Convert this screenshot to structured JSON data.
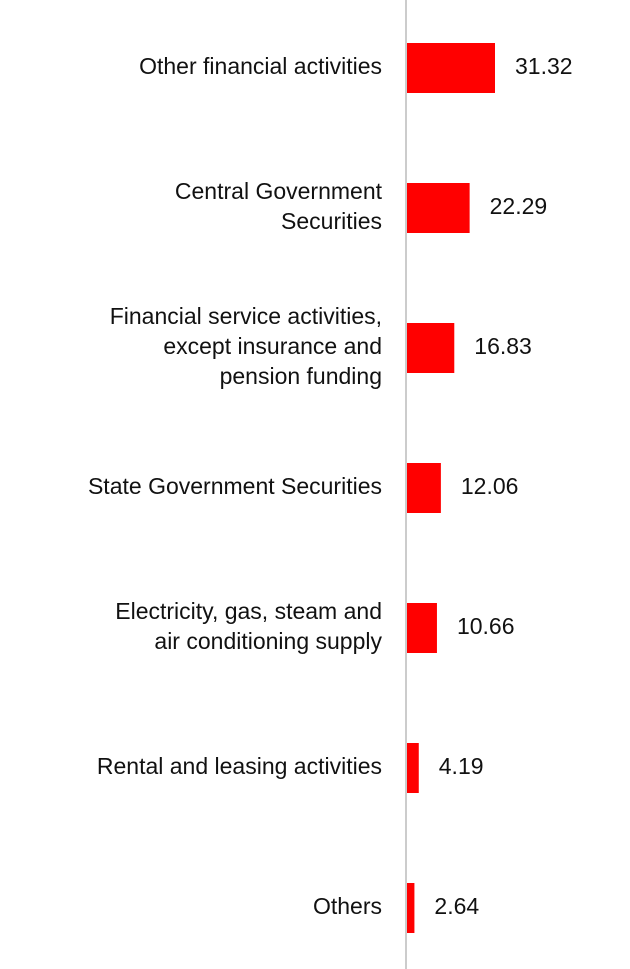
{
  "chart_data": {
    "type": "bar",
    "orientation": "horizontal",
    "categories": [
      "Other financial activities",
      "Central Government Securities",
      "Financial service activities, except insurance and pension funding",
      "State Government Securities",
      "Electricity, gas, steam and air conditioning supply",
      "Rental and leasing activities",
      "Others"
    ],
    "category_lines": [
      [
        "Other financial activities"
      ],
      [
        "Central Government",
        "Securities"
      ],
      [
        "Financial service activities,",
        "except insurance and",
        "pension funding"
      ],
      [
        "State Government Securities"
      ],
      [
        "Electricity, gas, steam and",
        "air conditioning supply"
      ],
      [
        "Rental and leasing activities"
      ],
      [
        "Others"
      ]
    ],
    "values": [
      31.32,
      22.29,
      16.83,
      12.06,
      10.66,
      4.19,
      2.64
    ],
    "value_labels": [
      "31.32",
      "22.29",
      "16.83",
      "12.06",
      "10.66",
      "4.19",
      "2.64"
    ],
    "xlim": [
      0,
      31.32
    ],
    "bar_color": "#ff0000",
    "axis_color": "#cccccc",
    "grid": false,
    "legend": false
  }
}
